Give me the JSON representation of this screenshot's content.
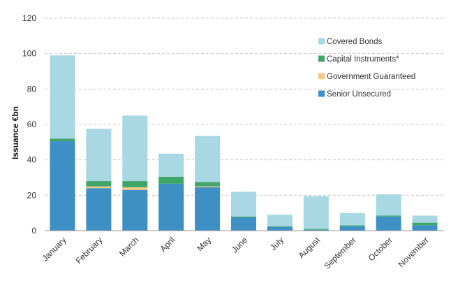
{
  "chart_data": {
    "type": "bar",
    "stacked": true,
    "ylabel": "Issuance €bn",
    "xlabel": "",
    "title": "",
    "ylim": [
      0,
      120
    ],
    "yticks": [
      0,
      20,
      40,
      60,
      80,
      100,
      120
    ],
    "ytick_labels": [
      "0",
      "20",
      "40",
      "60",
      "80",
      "100",
      "120"
    ],
    "grid": true,
    "legend_position": "top-right",
    "categories": [
      "January",
      "February",
      "March",
      "April",
      "May",
      "June",
      "July",
      "August",
      "September",
      "October",
      "November"
    ],
    "series": [
      {
        "name": "Senior Unsecured",
        "color": "#3d8fc4",
        "values": [
          50.5,
          24,
          23,
          26.5,
          24.5,
          7.5,
          2,
          0.5,
          2.5,
          8,
          3
        ]
      },
      {
        "name": "Government Guaranteed",
        "color": "#f0c987",
        "values": [
          0,
          1,
          1.5,
          0,
          0.5,
          0,
          0,
          0,
          0,
          0,
          0
        ]
      },
      {
        "name": "Capital Instruments*",
        "color": "#3fa56b",
        "values": [
          1.5,
          3,
          3.5,
          4,
          2.5,
          0.5,
          0.5,
          0.5,
          0.5,
          0.5,
          1.5
        ]
      },
      {
        "name": "Covered Bonds",
        "color": "#a8d8e4",
        "values": [
          47,
          29.5,
          37,
          13,
          26,
          14,
          6.5,
          18.5,
          7,
          12,
          4
        ]
      }
    ],
    "legend_order": [
      "Covered Bonds",
      "Capital Instruments*",
      "Government Guaranteed",
      "Senior Unsecured"
    ]
  }
}
